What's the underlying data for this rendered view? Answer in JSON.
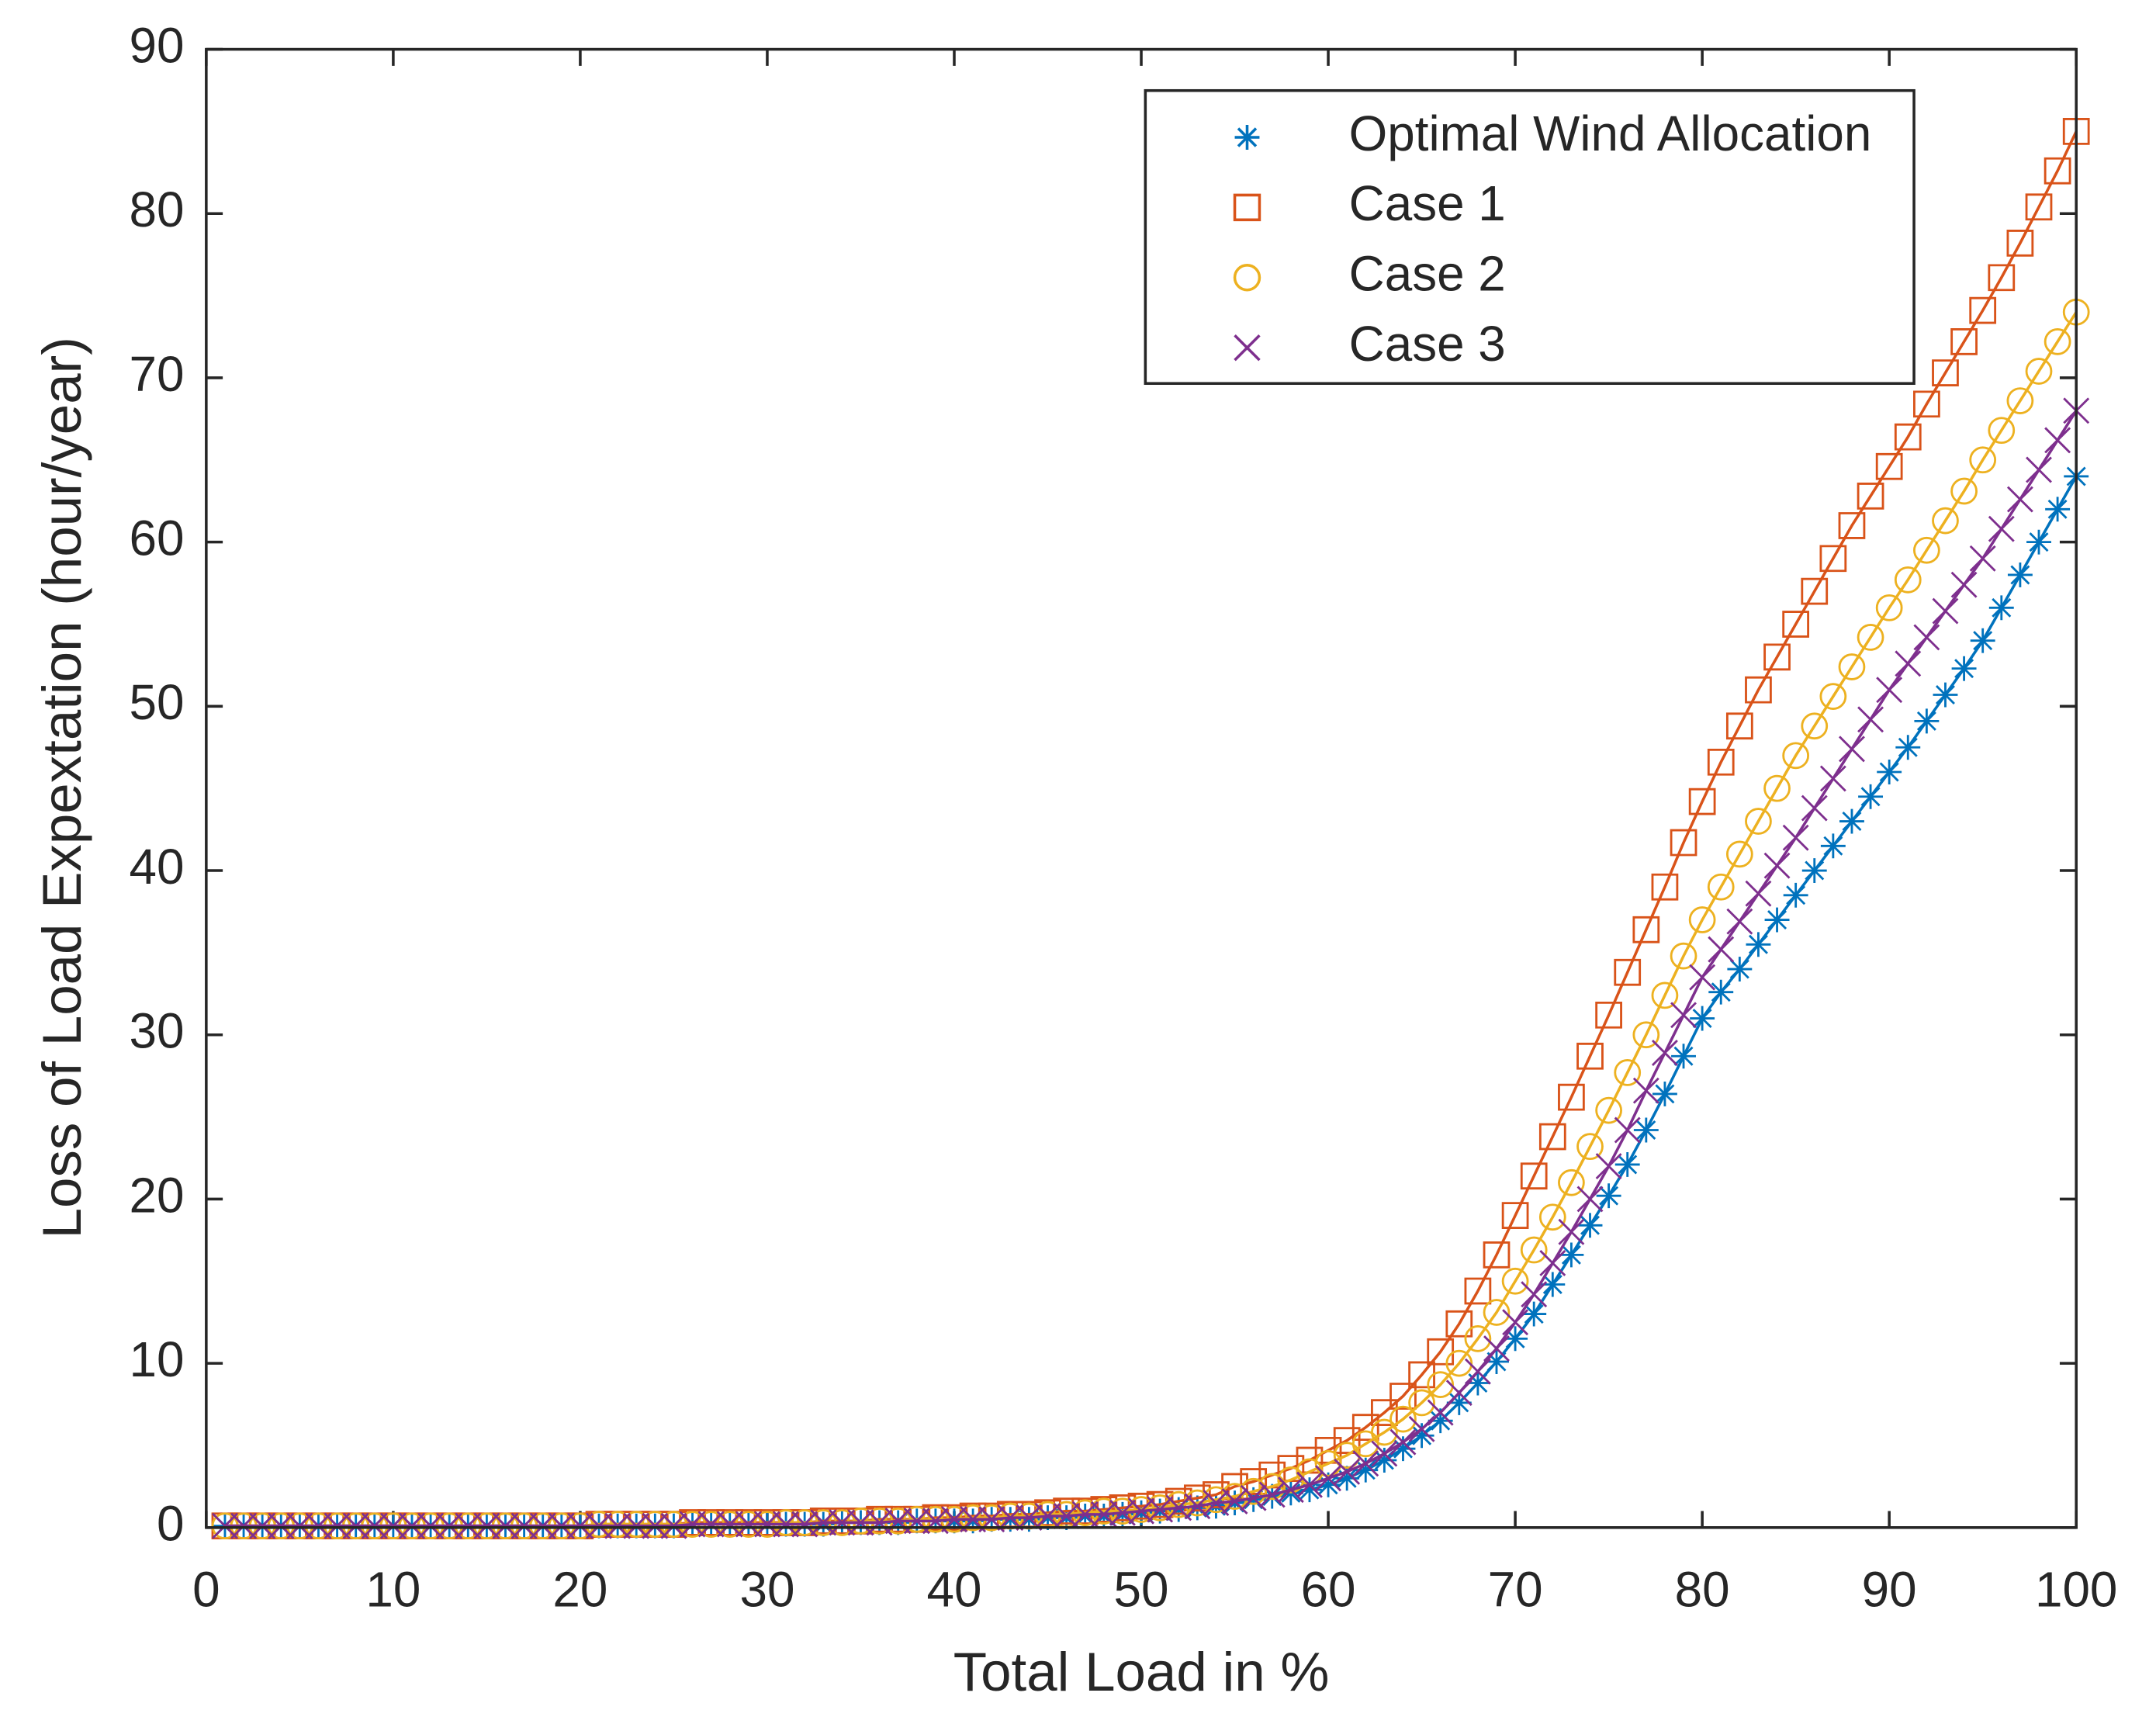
{
  "chart_data": {
    "type": "line",
    "xlabel": "Total Load in %",
    "ylabel": "Loss of Load Expextation (hour/year)",
    "x": [
      1,
      2,
      3,
      4,
      5,
      6,
      7,
      8,
      9,
      10,
      11,
      12,
      13,
      14,
      15,
      16,
      17,
      18,
      19,
      20,
      21,
      22,
      23,
      24,
      25,
      26,
      27,
      28,
      29,
      30,
      31,
      32,
      33,
      34,
      35,
      36,
      37,
      38,
      39,
      40,
      41,
      42,
      43,
      44,
      45,
      46,
      47,
      48,
      49,
      50,
      51,
      52,
      53,
      54,
      55,
      56,
      57,
      58,
      59,
      60,
      61,
      62,
      63,
      64,
      65,
      66,
      67,
      68,
      69,
      70,
      71,
      72,
      73,
      74,
      75,
      76,
      77,
      78,
      79,
      80,
      81,
      82,
      83,
      84,
      85,
      86,
      87,
      88,
      89,
      90,
      91,
      92,
      93,
      94,
      95,
      96,
      97,
      98,
      99,
      100
    ],
    "series": [
      {
        "name": "Optimal Wind Allocation",
        "color": "#0072bd",
        "marker": "asterisk",
        "values": [
          0.1,
          0.1,
          0.1,
          0.1,
          0.1,
          0.1,
          0.1,
          0.1,
          0.1,
          0.1,
          0.1,
          0.1,
          0.1,
          0.1,
          0.1,
          0.1,
          0.1,
          0.1,
          0.1,
          0.1,
          0.1,
          0.1,
          0.1,
          0.1,
          0.1,
          0.2,
          0.2,
          0.2,
          0.2,
          0.2,
          0.2,
          0.2,
          0.2,
          0.3,
          0.3,
          0.3,
          0.3,
          0.4,
          0.4,
          0.4,
          0.4,
          0.5,
          0.5,
          0.5,
          0.6,
          0.6,
          0.7,
          0.7,
          0.8,
          0.9,
          1.0,
          1.1,
          1.2,
          1.3,
          1.5,
          1.7,
          1.9,
          2.1,
          2.3,
          2.6,
          3.0,
          3.5,
          4.1,
          4.8,
          5.6,
          6.5,
          7.6,
          8.8,
          10.1,
          11.5,
          13.0,
          14.8,
          16.6,
          18.4,
          20.2,
          22.1,
          24.2,
          26.4,
          28.7,
          31.0,
          32.6,
          34.0,
          35.5,
          37.0,
          38.5,
          40.0,
          41.5,
          43.0,
          44.5,
          46.0,
          47.5,
          49.1,
          50.7,
          52.3,
          54.0,
          56.0,
          58.0,
          60.0,
          62.0,
          64.0
        ]
      },
      {
        "name": "Case 1",
        "color": "#d95319",
        "marker": "square",
        "values": [
          0.1,
          0.1,
          0.1,
          0.1,
          0.1,
          0.1,
          0.1,
          0.1,
          0.1,
          0.1,
          0.1,
          0.1,
          0.1,
          0.1,
          0.1,
          0.1,
          0.1,
          0.1,
          0.1,
          0.1,
          0.2,
          0.2,
          0.2,
          0.2,
          0.2,
          0.3,
          0.3,
          0.3,
          0.3,
          0.3,
          0.3,
          0.3,
          0.4,
          0.4,
          0.4,
          0.5,
          0.5,
          0.5,
          0.6,
          0.6,
          0.7,
          0.7,
          0.8,
          0.8,
          0.9,
          1.0,
          1.0,
          1.1,
          1.2,
          1.3,
          1.4,
          1.6,
          1.8,
          2.0,
          2.5,
          2.8,
          3.2,
          3.6,
          4.1,
          4.7,
          5.3,
          6.1,
          7.0,
          8.0,
          9.3,
          10.7,
          12.4,
          14.4,
          16.6,
          19.0,
          21.4,
          23.8,
          26.2,
          28.7,
          31.2,
          33.8,
          36.4,
          39.0,
          41.7,
          44.2,
          46.6,
          48.8,
          51.0,
          53.0,
          55.0,
          57.0,
          59.0,
          61.0,
          62.8,
          64.6,
          66.4,
          68.4,
          70.3,
          72.2,
          74.1,
          76.1,
          78.2,
          80.4,
          82.6,
          85.0
        ]
      },
      {
        "name": "Case 2",
        "color": "#edb120",
        "marker": "circle",
        "values": [
          0.1,
          0.1,
          0.1,
          0.1,
          0.1,
          0.1,
          0.1,
          0.1,
          0.1,
          0.1,
          0.1,
          0.1,
          0.1,
          0.1,
          0.1,
          0.1,
          0.1,
          0.1,
          0.1,
          0.1,
          0.2,
          0.2,
          0.2,
          0.2,
          0.2,
          0.2,
          0.2,
          0.2,
          0.2,
          0.2,
          0.3,
          0.3,
          0.3,
          0.3,
          0.4,
          0.4,
          0.4,
          0.5,
          0.5,
          0.5,
          0.6,
          0.6,
          0.7,
          0.7,
          0.8,
          0.8,
          0.9,
          1.0,
          1.0,
          1.1,
          1.2,
          1.4,
          1.5,
          1.7,
          1.9,
          2.2,
          2.5,
          2.9,
          3.4,
          3.9,
          4.4,
          5.1,
          5.8,
          6.6,
          7.6,
          8.7,
          10.0,
          11.5,
          13.1,
          15.0,
          16.9,
          18.9,
          21.0,
          23.2,
          25.4,
          27.7,
          30.0,
          32.4,
          34.8,
          37.0,
          39.0,
          41.0,
          43.0,
          45.0,
          47.0,
          48.8,
          50.6,
          52.4,
          54.2,
          56.0,
          57.7,
          59.5,
          61.3,
          63.1,
          65.0,
          66.8,
          68.6,
          70.4,
          72.2,
          74.0
        ]
      },
      {
        "name": "Case 3",
        "color": "#7e2f8e",
        "marker": "x",
        "values": [
          0.1,
          0.1,
          0.1,
          0.1,
          0.1,
          0.1,
          0.1,
          0.1,
          0.1,
          0.1,
          0.1,
          0.1,
          0.1,
          0.1,
          0.1,
          0.1,
          0.1,
          0.1,
          0.1,
          0.1,
          0.1,
          0.1,
          0.1,
          0.1,
          0.1,
          0.2,
          0.2,
          0.2,
          0.2,
          0.2,
          0.2,
          0.2,
          0.3,
          0.3,
          0.3,
          0.3,
          0.4,
          0.4,
          0.4,
          0.5,
          0.5,
          0.5,
          0.6,
          0.6,
          0.7,
          0.7,
          0.8,
          0.8,
          0.9,
          1.0,
          1.1,
          1.2,
          1.3,
          1.5,
          1.6,
          1.8,
          2.0,
          2.3,
          2.6,
          3.0,
          3.4,
          3.9,
          4.5,
          5.2,
          6.0,
          7.0,
          8.2,
          9.5,
          10.9,
          12.5,
          14.2,
          16.1,
          18.0,
          20.0,
          22.0,
          24.2,
          26.6,
          28.9,
          31.2,
          33.5,
          35.2,
          36.9,
          38.6,
          40.3,
          42.0,
          43.8,
          45.6,
          47.4,
          49.2,
          51.0,
          52.6,
          54.2,
          55.8,
          57.4,
          59.0,
          60.8,
          62.6,
          64.4,
          66.2,
          68.0
        ]
      }
    ],
    "xlim": [
      0,
      100
    ],
    "xticks": [
      0,
      10,
      20,
      30,
      40,
      50,
      60,
      70,
      80,
      90,
      100
    ],
    "ylim": [
      0,
      90
    ],
    "yticks": [
      0,
      10,
      20,
      30,
      40,
      50,
      60,
      70,
      80,
      90
    ],
    "legend": "upper right"
  }
}
